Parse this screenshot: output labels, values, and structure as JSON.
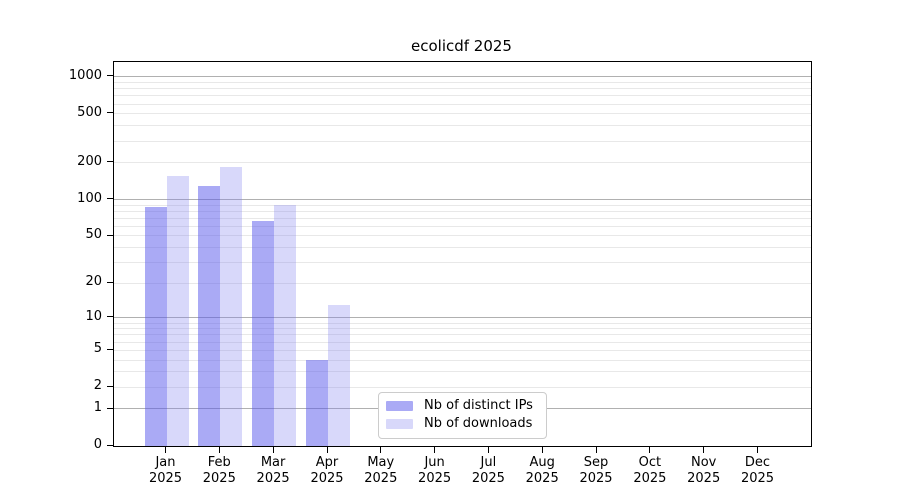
{
  "chart_data": {
    "type": "bar",
    "title": "ecolicdf 2025",
    "year_label": "2025",
    "categories": [
      "Jan",
      "Feb",
      "Mar",
      "Apr",
      "May",
      "Jun",
      "Jul",
      "Aug",
      "Sep",
      "Oct",
      "Nov",
      "Dec"
    ],
    "series": [
      {
        "name": "Nb of distinct IPs",
        "key": "distinct-ips",
        "color": "rgba(85, 85, 235, 0.5)",
        "values": [
          87,
          130,
          66,
          4,
          0,
          0,
          0,
          0,
          0,
          0,
          0,
          0
        ]
      },
      {
        "name": "Nb of downloads",
        "key": "downloads",
        "color": "rgba(125, 125, 240, 0.3)",
        "values": [
          155,
          184,
          90,
          13,
          0,
          0,
          0,
          0,
          0,
          0,
          0,
          0
        ]
      }
    ],
    "yscale": "log1p",
    "yticks": [
      0,
      1,
      2,
      5,
      10,
      20,
      50,
      100,
      200,
      500,
      1000
    ],
    "ylim": [
      0,
      1000
    ],
    "grid": {
      "major_ticks": [
        1,
        10,
        100,
        1000
      ],
      "major_color": "#b0b0b0",
      "minor_color": "#e8e8e8",
      "visible": "on"
    },
    "legend_position": "lower-center-inside",
    "axis_color": "#000000"
  }
}
